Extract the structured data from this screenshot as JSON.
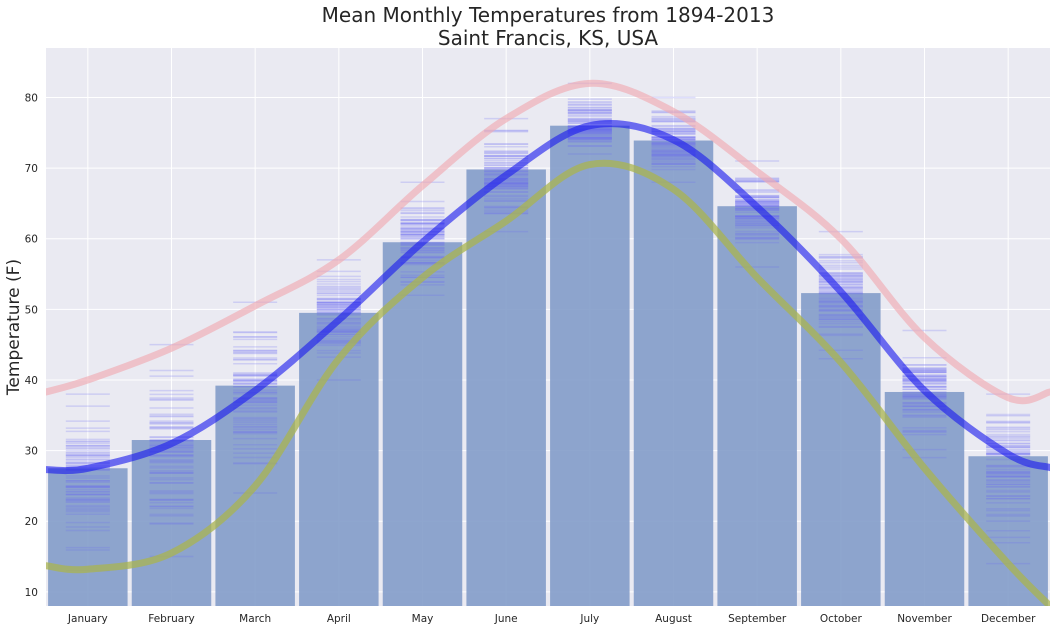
{
  "chart_data": {
    "type": "bar",
    "title": "Mean Monthly Temperatures from 1894-2013",
    "subtitle": "Saint Francis, KS, USA",
    "xlabel": "",
    "ylabel": "Temperature (F)",
    "ylim": [
      8,
      87
    ],
    "yticks": [
      10,
      20,
      30,
      40,
      50,
      60,
      70,
      80
    ],
    "grid": true,
    "categories": [
      "January",
      "February",
      "March",
      "April",
      "May",
      "June",
      "July",
      "August",
      "September",
      "October",
      "November",
      "December"
    ],
    "values": [
      27.5,
      31.5,
      39.2,
      49.5,
      59.5,
      69.8,
      76.0,
      73.9,
      64.6,
      52.3,
      38.3,
      29.2
    ],
    "annual_spread": {
      "min": [
        13,
        15,
        24,
        40,
        52,
        61,
        72,
        68,
        56,
        43,
        29,
        14
      ],
      "max": [
        38,
        45,
        51,
        57,
        68,
        77,
        82,
        80,
        71,
        61,
        47,
        38
      ]
    },
    "series": [
      {
        "color": "#f0aab2",
        "x": [
          -0.5,
          0,
          1,
          2,
          3,
          4,
          5,
          6,
          7,
          8,
          9,
          10,
          11,
          11.5
        ],
        "values": [
          38.3,
          40,
          44.5,
          50.5,
          57,
          67.5,
          77,
          82,
          78,
          69.5,
          60,
          46,
          37.5,
          38.3
        ]
      },
      {
        "color": "#1c1cee",
        "x": [
          -0.5,
          0,
          1,
          2,
          3,
          4,
          5,
          6,
          7,
          8,
          9,
          10,
          11,
          11.5
        ],
        "values": [
          27.3,
          27.5,
          31,
          38.5,
          48.5,
          59.5,
          69,
          76,
          74,
          64.5,
          52.5,
          38.5,
          29.5,
          27.6
        ]
      },
      {
        "color": "#a9b44f",
        "x": [
          -0.5,
          0,
          1,
          2,
          3,
          4,
          5,
          6,
          7,
          8,
          9,
          10,
          11,
          11.5
        ],
        "values": [
          13.7,
          13.2,
          15.5,
          25,
          43,
          54.5,
          62.5,
          70.5,
          67,
          54.5,
          42.5,
          27.5,
          14,
          8
        ]
      }
    ],
    "colors": {
      "background": "#eaeaf2",
      "grid": "#ffffff",
      "bar": "#7f9ac7",
      "dash": "#6a6af0"
    }
  }
}
